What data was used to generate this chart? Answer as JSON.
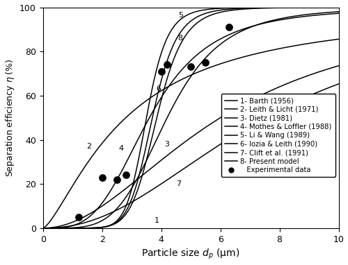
{
  "xlabel": "Particle size $d_p$ (μm)",
  "ylabel": "Separation efficiency $\\eta$ (%)",
  "xlim": [
    0,
    10
  ],
  "ylim": [
    0,
    100
  ],
  "xticks": [
    0,
    2,
    4,
    6,
    8,
    10
  ],
  "yticks": [
    0,
    20,
    40,
    60,
    80,
    100
  ],
  "legend_entries": [
    "1- Barth (1956)",
    "2- Leith & Licht (1971)",
    "3- Dietz (1981)",
    "4- Mothes & Loffler (1988)",
    "5- Li & Wang (1989)",
    "6- Iozia & Leith (1990)",
    "7- Clift et al. (1991)",
    "8- Present model",
    "   Experimental data"
  ],
  "exp_data_x": [
    1.2,
    2.0,
    2.5,
    2.8,
    4.0,
    4.2,
    5.0,
    5.5,
    6.3
  ],
  "exp_data_y": [
    5,
    23,
    22,
    24,
    71,
    74,
    73,
    75,
    91
  ],
  "background_color": "#ffffff",
  "line_color": "#000000",
  "curve1_d50": 7.5,
  "curve1_m": 2.2,
  "curve2_d50": 2.8,
  "curve2_m": 1.4,
  "curve3_d50": 4.2,
  "curve3_m": 4.5,
  "curve4_d50": 3.6,
  "curve4_m": 3.5,
  "curve5_d50": 3.5,
  "curve5_m": 10.0,
  "curve6_d50": 3.85,
  "curve6_m": 8.5,
  "curve7_d50": 6.0,
  "curve7_m": 2.0,
  "curve8_d50": 3.7,
  "curve8_m": 9.0,
  "lw": 1.1
}
